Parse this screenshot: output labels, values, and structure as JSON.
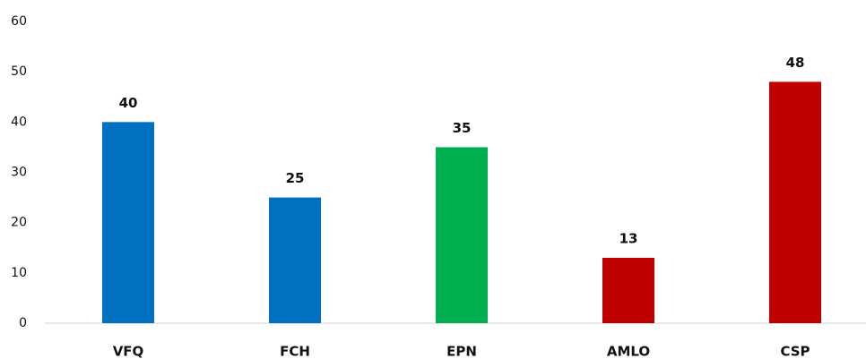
{
  "chart_data": {
    "type": "bar",
    "categories": [
      "VFQ",
      "FCH",
      "EPN",
      "AMLO",
      "CSP"
    ],
    "values": [
      40,
      25,
      35,
      13,
      48
    ],
    "colors": [
      "#0070c0",
      "#0070c0",
      "#00b050",
      "#c00000",
      "#c00000"
    ],
    "ylim": [
      0,
      60
    ],
    "yticks": [
      0,
      10,
      20,
      30,
      40,
      50,
      60
    ],
    "grid": false
  }
}
